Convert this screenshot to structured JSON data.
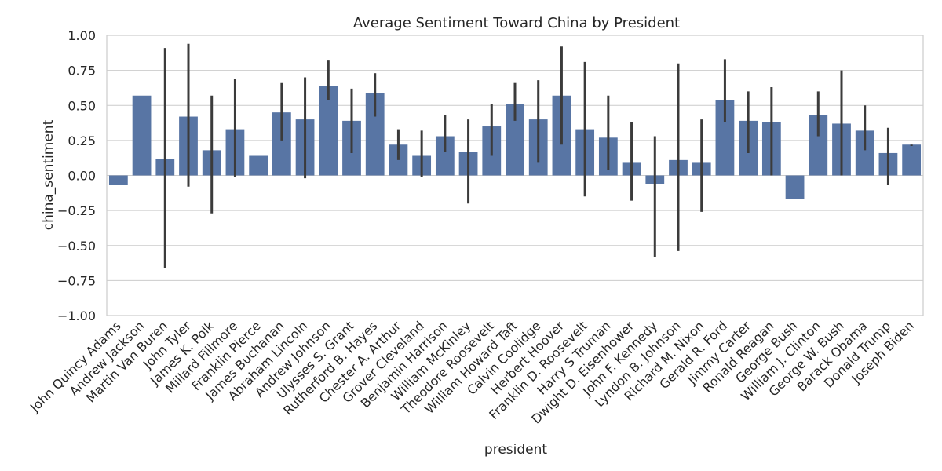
{
  "chart_data": {
    "type": "bar",
    "title": "Average Sentiment Toward China by President",
    "xlabel": "president",
    "ylabel": "china_sentiment",
    "ylim": [
      -1.0,
      1.0
    ],
    "yticks": [
      "−1.00",
      "−0.75",
      "−0.50",
      "−0.25",
      "0.00",
      "0.25",
      "0.50",
      "0.75",
      "1.00"
    ],
    "grid": true,
    "bar_color": "#5875a4",
    "error_color": "#3b3b3b",
    "grid_color": "#cccccc",
    "categories": [
      "John Quincy Adams",
      "Andrew Jackson",
      "Martin Van Buren",
      "John Tyler",
      "James K. Polk",
      "Millard Fillmore",
      "Franklin Pierce",
      "James Buchanan",
      "Abraham Lincoln",
      "Andrew Johnson",
      "Ulysses S. Grant",
      "Rutherford B. Hayes",
      "Chester A. Arthur",
      "Grover Cleveland",
      "Benjamin Harrison",
      "William McKinley",
      "Theodore Roosevelt",
      "William Howard Taft",
      "Calvin Coolidge",
      "Herbert Hoover",
      "Franklin D. Roosevelt",
      "Harry S Truman",
      "Dwight D. Eisenhower",
      "John F. Kennedy",
      "Lyndon B. Johnson",
      "Richard M. Nixon",
      "Gerald R. Ford",
      "Jimmy Carter",
      "Ronald Reagan",
      "George Bush",
      "William J. Clinton",
      "George W. Bush",
      "Barack Obama",
      "Donald Trump",
      "Joseph Biden"
    ],
    "values": [
      -0.07,
      0.57,
      0.12,
      0.42,
      0.18,
      0.33,
      0.14,
      0.45,
      0.4,
      0.64,
      0.39,
      0.59,
      0.22,
      0.14,
      0.28,
      0.17,
      0.35,
      0.51,
      0.4,
      0.57,
      0.33,
      0.27,
      0.09,
      -0.06,
      0.11,
      0.09,
      0.54,
      0.39,
      0.38,
      -0.17,
      0.43,
      0.37,
      0.32,
      0.16,
      0.22
    ],
    "error_bars": [
      null,
      null,
      [
        -0.66,
        0.91
      ],
      [
        -0.08,
        0.94
      ],
      [
        -0.27,
        0.57
      ],
      [
        -0.01,
        0.69
      ],
      null,
      [
        0.25,
        0.66
      ],
      [
        -0.02,
        0.7
      ],
      [
        0.54,
        0.82
      ],
      [
        0.16,
        0.62
      ],
      [
        0.42,
        0.73
      ],
      [
        0.11,
        0.33
      ],
      [
        -0.01,
        0.32
      ],
      [
        0.17,
        0.43
      ],
      [
        -0.2,
        0.4
      ],
      [
        0.14,
        0.51
      ],
      [
        0.39,
        0.66
      ],
      [
        0.09,
        0.68
      ],
      [
        0.22,
        0.92
      ],
      [
        -0.15,
        0.81
      ],
      [
        0.04,
        0.57
      ],
      [
        -0.18,
        0.38
      ],
      [
        -0.58,
        0.28
      ],
      [
        -0.54,
        0.8
      ],
      [
        -0.26,
        0.4
      ],
      [
        0.38,
        0.83
      ],
      [
        0.16,
        0.6
      ],
      [
        0.0,
        0.63
      ],
      null,
      [
        0.28,
        0.6
      ],
      [
        0.0,
        0.75
      ],
      [
        0.18,
        0.5
      ],
      [
        -0.07,
        0.34
      ],
      [
        0.21,
        0.22
      ]
    ]
  }
}
